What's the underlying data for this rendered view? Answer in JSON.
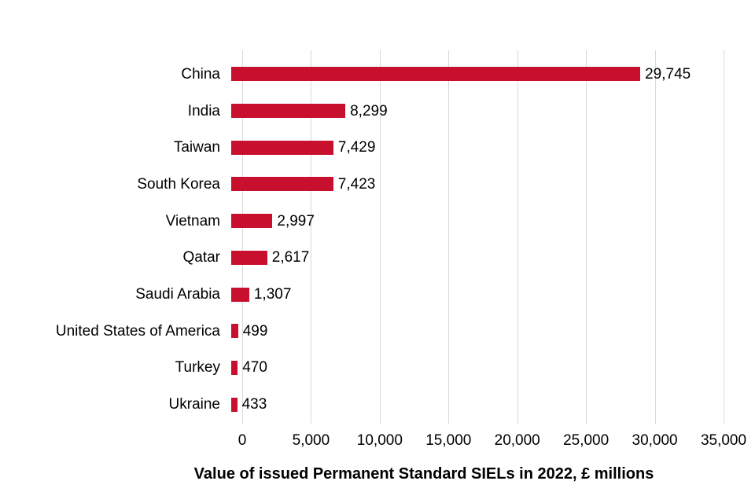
{
  "chart_data": {
    "type": "bar",
    "orientation": "horizontal",
    "categories": [
      "China",
      "India",
      "Taiwan",
      "South Korea",
      "Vietnam",
      "Qatar",
      "Saudi Arabia",
      "United States of America",
      "Turkey",
      "Ukraine"
    ],
    "values": [
      29745,
      8299,
      7429,
      7423,
      2997,
      2617,
      1307,
      499,
      470,
      433
    ],
    "value_labels": [
      "29,745",
      "8,299",
      "7,429",
      "7,423",
      "2,997",
      "2,617",
      "1,307",
      "499",
      "470",
      "433"
    ],
    "xlabel": "Value of issued Permanent Standard SIELs in 2022, £ millions",
    "ylabel": "",
    "xlim": [
      0,
      35000
    ],
    "x_ticks": [
      0,
      5000,
      10000,
      15000,
      20000,
      25000,
      30000,
      35000
    ],
    "x_tick_labels": [
      "0",
      "5,000",
      "10,000",
      "15,000",
      "20,000",
      "25,000",
      "30,000",
      "35,000"
    ],
    "grid": "vertical-only",
    "legend": "none",
    "colors": {
      "bar": "#C8102E",
      "gridline": "#D9D9D9",
      "text": "#000000",
      "background": "#FFFFFF"
    }
  }
}
